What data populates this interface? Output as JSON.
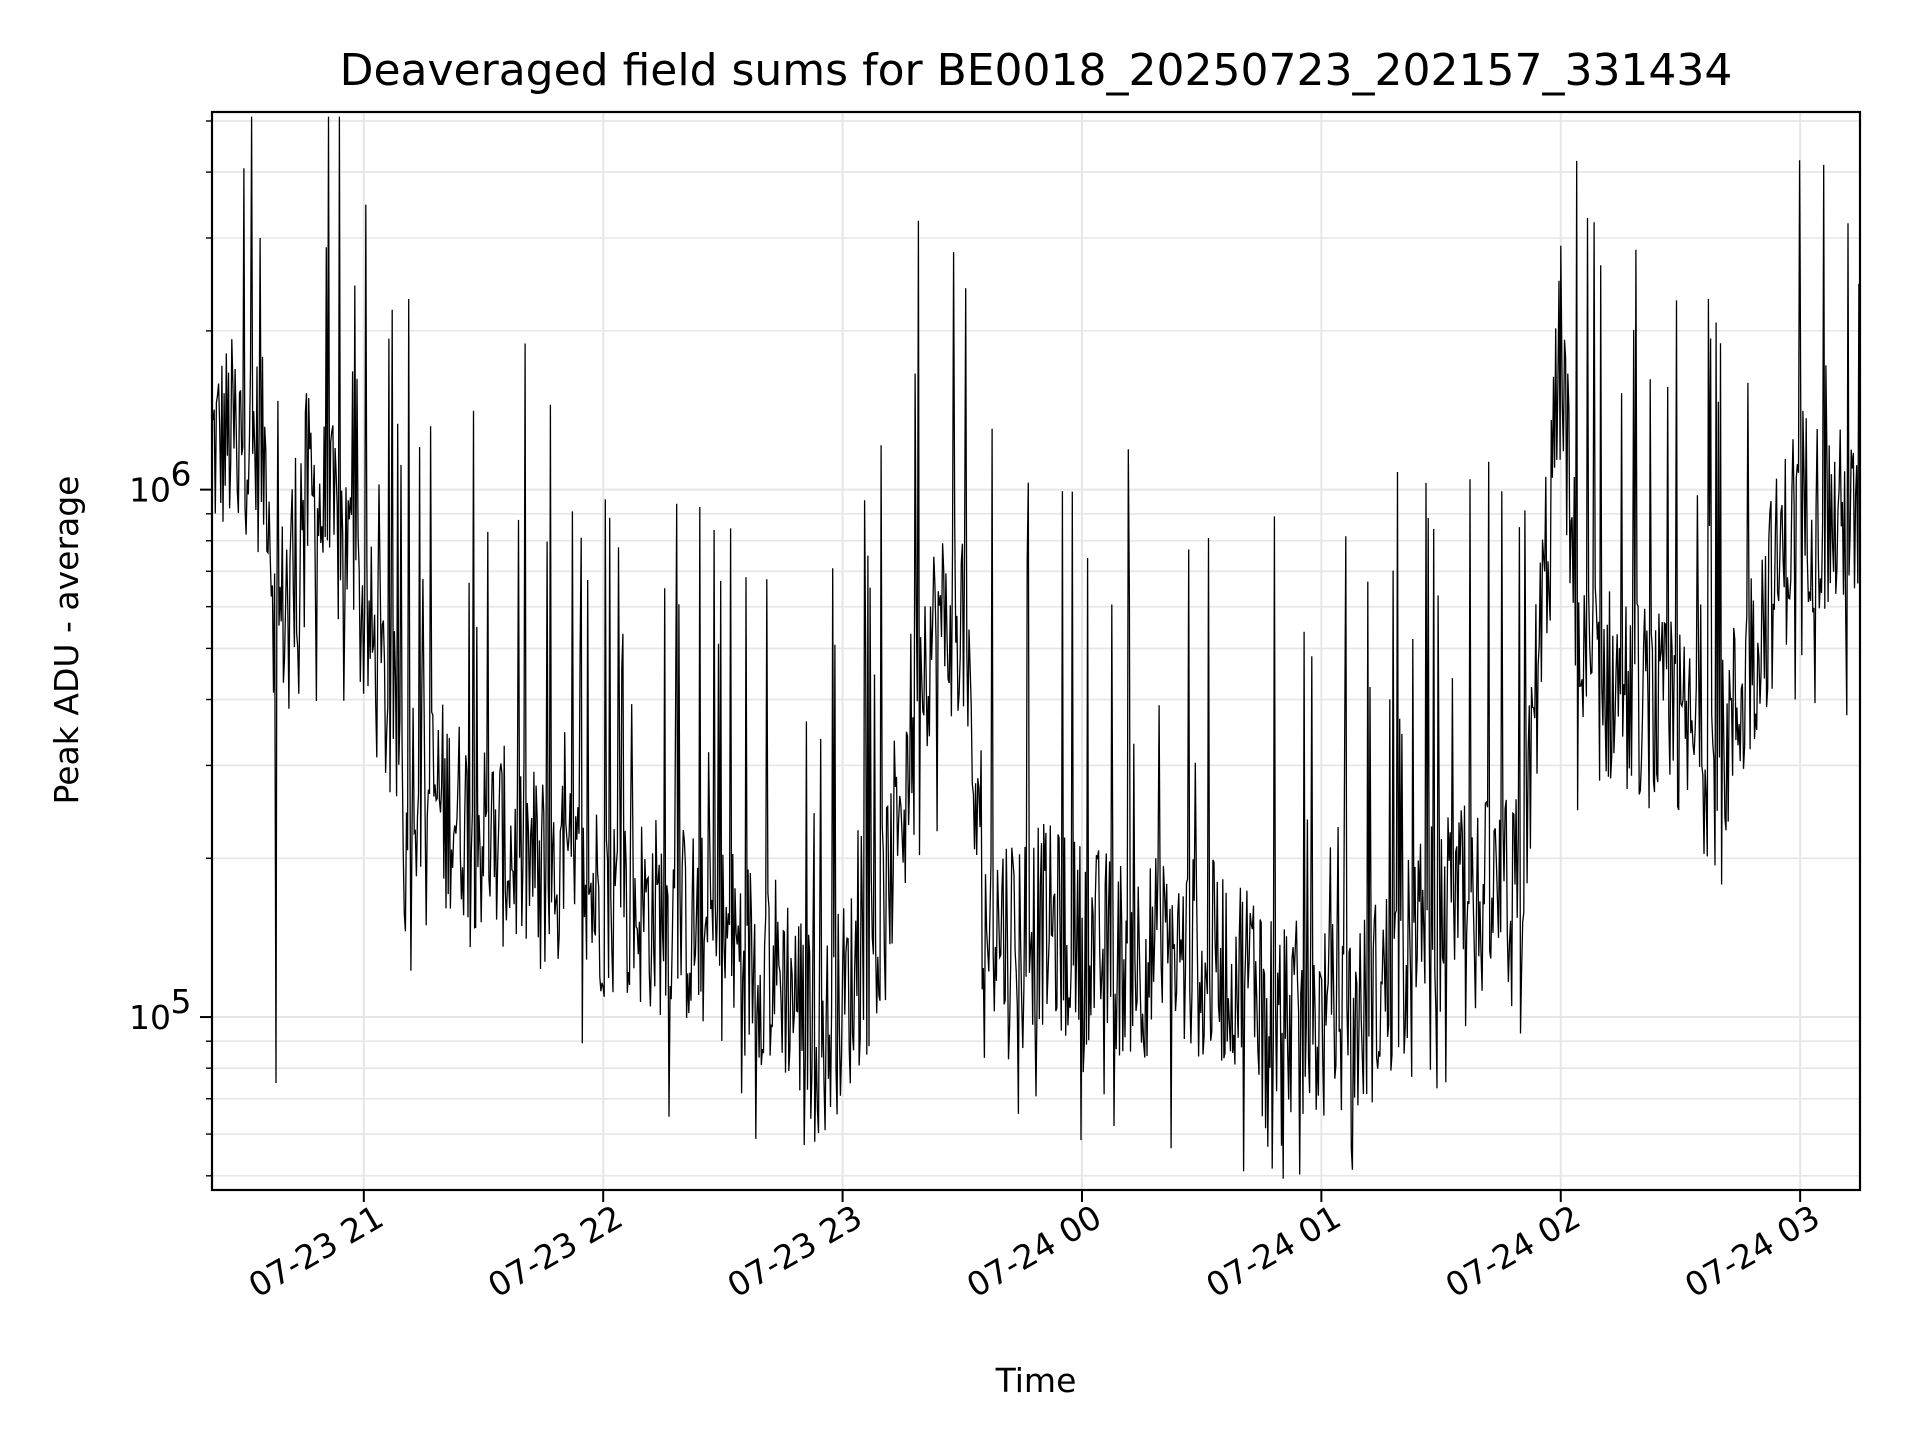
{
  "chart_data": {
    "type": "line",
    "title": "Deaveraged field sums for BE0018_20250723_202157_331434",
    "xlabel": "Time",
    "ylabel": "Peak ADU - average",
    "yscale": "log",
    "grid": true,
    "line_color": "#000000",
    "grid_color": "#e6e6e6",
    "xlim": [
      "2025-07-23 20:21:57",
      "2025-07-24 03:15:00"
    ],
    "ylim": [
      47000,
      5200000
    ],
    "x_ticks": [
      "2025-07-23 21:00",
      "2025-07-23 22:00",
      "2025-07-23 23:00",
      "2025-07-24 00:00",
      "2025-07-24 01:00",
      "2025-07-24 02:00",
      "2025-07-24 03:00"
    ],
    "x_tick_labels": [
      "07-23 21",
      "07-23 22",
      "07-23 23",
      "07-24 00",
      "07-24 01",
      "07-24 02",
      "07-24 03"
    ],
    "y_ticks": [
      100000,
      1000000
    ],
    "y_tick_labels": [
      {
        "base": "10",
        "exp": "5"
      },
      {
        "base": "10",
        "exp": "6"
      }
    ],
    "series": [
      {
        "x": [
          "2025-07-23 20:21:57",
          "2025-07-23 20:30",
          "2025-07-23 20:36",
          "2025-07-23 20:38",
          "2025-07-23 20:45",
          "2025-07-23 20:55",
          "2025-07-23 21:10",
          "2025-07-23 21:30",
          "2025-07-23 21:50",
          "2025-07-23 22:10",
          "2025-07-23 22:30",
          "2025-07-23 22:45",
          "2025-07-23 22:55",
          "2025-07-23 23:10",
          "2025-07-23 23:20",
          "2025-07-23 23:30",
          "2025-07-23 23:35",
          "2025-07-23 23:50",
          "2025-07-24 00:10",
          "2025-07-24 00:30",
          "2025-07-24 00:45",
          "2025-07-24 00:55",
          "2025-07-24 01:10",
          "2025-07-24 01:30",
          "2025-07-24 01:50",
          "2025-07-24 02:00",
          "2025-07-24 02:05",
          "2025-07-24 02:20",
          "2025-07-24 02:40",
          "2025-07-24 02:50",
          "2025-07-24 03:00",
          "2025-07-24 03:15"
        ],
        "y": [
          1200000,
          1300000,
          1100000,
          500000,
          1000000,
          800000,
          300000,
          220000,
          180000,
          160000,
          140000,
          120000,
          90000,
          150000,
          500000,
          600000,
          150000,
          150000,
          130000,
          130000,
          120000,
          95000,
          100000,
          160000,
          170000,
          1800000,
          450000,
          400000,
          300000,
          550000,
          950000,
          800000
        ]
      }
    ],
    "spikes": {
      "x": [
        "2025-07-23 20:38",
        "2025-07-23 20:34",
        "2025-07-23 22:53",
        "2025-07-24 00:50",
        "2025-07-24 02:00",
        "2025-07-24 02:04",
        "2025-07-24 02:37",
        "2025-07-24 03:00",
        "2025-07-24 03:12"
      ],
      "y": [
        75000,
        3000000,
        58000,
        57000,
        2900000,
        4200000,
        2300000,
        2500000,
        3200000
      ]
    }
  }
}
